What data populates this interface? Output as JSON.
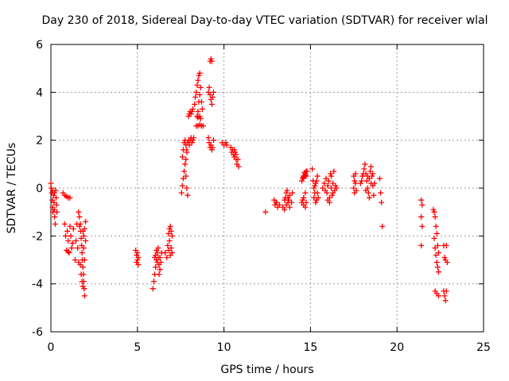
{
  "chart_data": {
    "type": "scatter",
    "title": "Day 230 of 2018, Sidereal Day-to-day VTEC variation (SDTVAR) for receiver wlal",
    "xlabel": "GPS time / hours",
    "ylabel": "SDTVAR / TECUs",
    "xlim": [
      0,
      25
    ],
    "ylim": [
      -6,
      6
    ],
    "xticks": [
      0,
      5,
      10,
      15,
      20,
      25
    ],
    "yticks": [
      -6,
      -4,
      -2,
      0,
      2,
      4,
      6
    ],
    "xtick_labels": [
      "0",
      "5",
      "10",
      "15",
      "20",
      "25"
    ],
    "ytick_labels": [
      "-6",
      "-4",
      "-2",
      "0",
      "2",
      "4",
      "6"
    ],
    "grid": true,
    "marker": "+",
    "color": "#ff0000",
    "series": [
      {
        "name": "SDTVAR",
        "points": [
          [
            0.0,
            0.2
          ],
          [
            0.02,
            0.0
          ],
          [
            0.05,
            -0.2
          ],
          [
            0.08,
            -0.5
          ],
          [
            0.1,
            -0.8
          ],
          [
            0.12,
            -1.0
          ],
          [
            0.15,
            -0.3
          ],
          [
            0.18,
            -0.6
          ],
          [
            0.2,
            -0.9
          ],
          [
            0.22,
            -1.2
          ],
          [
            0.25,
            -1.5
          ],
          [
            0.28,
            -0.1
          ],
          [
            0.3,
            -0.4
          ],
          [
            0.33,
            -0.7
          ],
          [
            0.35,
            -1.0
          ],
          [
            0.1,
            -0.1
          ],
          [
            0.2,
            -0.2
          ],
          [
            0.7,
            -0.2
          ],
          [
            0.8,
            -0.3
          ],
          [
            0.9,
            -0.35
          ],
          [
            1.0,
            -0.4
          ],
          [
            1.1,
            -0.4
          ],
          [
            0.8,
            -1.5
          ],
          [
            0.85,
            -2.0
          ],
          [
            0.9,
            -2.6
          ],
          [
            0.95,
            -1.8
          ],
          [
            1.0,
            -2.2
          ],
          [
            1.05,
            -2.7
          ],
          [
            1.1,
            -1.6
          ],
          [
            1.15,
            -2.0
          ],
          [
            1.2,
            -2.5
          ],
          [
            1.25,
            -2.3
          ],
          [
            1.3,
            -1.7
          ],
          [
            1.0,
            -2.65
          ],
          [
            1.4,
            -3.0
          ],
          [
            1.45,
            -2.2
          ],
          [
            1.5,
            -1.5
          ],
          [
            1.55,
            -2.5
          ],
          [
            1.6,
            -3.1
          ],
          [
            1.65,
            -1.6
          ],
          [
            1.6,
            -1.0
          ],
          [
            1.65,
            -1.2
          ],
          [
            1.7,
            -1.5
          ],
          [
            1.72,
            -1.8
          ],
          [
            1.75,
            -2.1
          ],
          [
            1.78,
            -2.4
          ],
          [
            1.8,
            -2.7
          ],
          [
            1.82,
            -3.0
          ],
          [
            1.85,
            -3.3
          ],
          [
            1.88,
            -3.6
          ],
          [
            1.9,
            -3.9
          ],
          [
            1.92,
            -4.2
          ],
          [
            1.95,
            -4.5
          ],
          [
            1.7,
            -3.2
          ],
          [
            1.75,
            -3.6
          ],
          [
            1.8,
            -3.9
          ],
          [
            1.85,
            -4.1
          ],
          [
            1.9,
            -2.0
          ],
          [
            1.95,
            -1.7
          ],
          [
            2.0,
            -2.2
          ],
          [
            2.0,
            -1.4
          ],
          [
            1.85,
            -1.8
          ],
          [
            1.9,
            -2.5
          ],
          [
            1.95,
            -3.0
          ],
          [
            4.9,
            -2.6
          ],
          [
            4.95,
            -2.8
          ],
          [
            5.0,
            -3.0
          ],
          [
            5.05,
            -3.2
          ],
          [
            4.95,
            -3.1
          ],
          [
            5.0,
            -2.7
          ],
          [
            5.05,
            -2.9
          ],
          [
            5.9,
            -4.2
          ],
          [
            5.95,
            -3.9
          ],
          [
            6.0,
            -3.6
          ],
          [
            6.05,
            -3.3
          ],
          [
            6.1,
            -3.0
          ],
          [
            6.15,
            -2.7
          ],
          [
            6.2,
            -2.9
          ],
          [
            6.25,
            -3.2
          ],
          [
            6.3,
            -3.4
          ],
          [
            6.05,
            -2.8
          ],
          [
            6.1,
            -2.6
          ],
          [
            6.15,
            -3.1
          ],
          [
            6.2,
            -2.5
          ],
          [
            6.3,
            -2.9
          ],
          [
            6.35,
            -3.1
          ],
          [
            6.4,
            -2.7
          ],
          [
            6.25,
            -3.6
          ],
          [
            6.0,
            -2.9
          ],
          [
            6.6,
            -2.7
          ],
          [
            6.7,
            -2.9
          ],
          [
            6.8,
            -2.6
          ],
          [
            6.9,
            -2.8
          ],
          [
            6.95,
            -2.5
          ],
          [
            7.0,
            -2.7
          ],
          [
            6.75,
            -2.4
          ],
          [
            6.85,
            -2.2
          ],
          [
            6.8,
            -1.9
          ],
          [
            6.85,
            -1.7
          ],
          [
            6.9,
            -1.6
          ],
          [
            6.95,
            -1.8
          ],
          [
            7.0,
            -2.0
          ],
          [
            7.55,
            -0.2
          ],
          [
            7.6,
            0.1
          ],
          [
            7.65,
            0.4
          ],
          [
            7.7,
            0.7
          ],
          [
            7.75,
            1.0
          ],
          [
            7.8,
            0.5
          ],
          [
            7.85,
            0.0
          ],
          [
            7.9,
            -0.3
          ],
          [
            7.6,
            1.3
          ],
          [
            7.65,
            1.6
          ],
          [
            7.7,
            1.9
          ],
          [
            7.75,
            2.0
          ],
          [
            7.8,
            1.8
          ],
          [
            7.85,
            1.6
          ],
          [
            7.9,
            1.9
          ],
          [
            7.95,
            2.0
          ],
          [
            8.0,
            1.8
          ],
          [
            8.05,
            2.0
          ],
          [
            8.1,
            2.1
          ],
          [
            8.15,
            1.9
          ],
          [
            8.2,
            2.0
          ],
          [
            8.25,
            2.1
          ],
          [
            7.8,
            1.2
          ],
          [
            7.85,
            1.5
          ],
          [
            7.95,
            3.0
          ],
          [
            8.0,
            3.1
          ],
          [
            8.05,
            3.2
          ],
          [
            8.1,
            3.1
          ],
          [
            8.15,
            3.2
          ],
          [
            8.2,
            3.3
          ],
          [
            8.3,
            3.5
          ],
          [
            8.35,
            3.8
          ],
          [
            8.4,
            4.0
          ],
          [
            8.45,
            4.3
          ],
          [
            8.5,
            4.5
          ],
          [
            8.55,
            4.7
          ],
          [
            8.6,
            4.8
          ],
          [
            8.5,
            3.2
          ],
          [
            8.55,
            3.6
          ],
          [
            8.6,
            3.9
          ],
          [
            8.65,
            4.2
          ],
          [
            8.7,
            3.6
          ],
          [
            8.75,
            3.3
          ],
          [
            8.6,
            3.0
          ],
          [
            8.65,
            2.9
          ],
          [
            8.45,
            3.0
          ],
          [
            8.5,
            2.95
          ],
          [
            8.4,
            2.6
          ],
          [
            8.5,
            2.6
          ],
          [
            8.6,
            2.65
          ],
          [
            8.7,
            2.6
          ],
          [
            8.8,
            2.6
          ],
          [
            9.1,
            4.0
          ],
          [
            9.15,
            4.2
          ],
          [
            9.2,
            3.9
          ],
          [
            9.25,
            3.7
          ],
          [
            9.3,
            3.5
          ],
          [
            9.35,
            3.8
          ],
          [
            9.4,
            4.0
          ],
          [
            9.2,
            5.3
          ],
          [
            9.25,
            5.4
          ],
          [
            9.3,
            5.3
          ],
          [
            9.1,
            2.1
          ],
          [
            9.15,
            1.9
          ],
          [
            9.2,
            1.7
          ],
          [
            9.25,
            1.8
          ],
          [
            9.3,
            1.6
          ],
          [
            9.35,
            1.7
          ],
          [
            9.4,
            2.0
          ],
          [
            9.9,
            1.9
          ],
          [
            10.0,
            1.8
          ],
          [
            10.1,
            1.9
          ],
          [
            10.15,
            1.8
          ],
          [
            10.4,
            1.7
          ],
          [
            10.45,
            1.5
          ],
          [
            10.5,
            1.6
          ],
          [
            10.55,
            1.4
          ],
          [
            10.6,
            1.3
          ],
          [
            10.65,
            1.5
          ],
          [
            10.7,
            1.2
          ],
          [
            10.75,
            1.0
          ],
          [
            10.8,
            1.2
          ],
          [
            10.85,
            0.9
          ],
          [
            10.7,
            1.4
          ],
          [
            10.6,
            1.6
          ],
          [
            12.4,
            -1.0
          ],
          [
            12.9,
            -0.5
          ],
          [
            12.95,
            -0.7
          ],
          [
            13.0,
            -0.6
          ],
          [
            13.1,
            -0.8
          ],
          [
            13.05,
            -0.6
          ],
          [
            13.2,
            -0.7
          ],
          [
            13.4,
            -0.8
          ],
          [
            13.5,
            -0.5
          ],
          [
            13.6,
            -0.2
          ],
          [
            13.7,
            -0.6
          ],
          [
            13.8,
            -0.3
          ],
          [
            13.5,
            -0.9
          ],
          [
            13.6,
            -0.7
          ],
          [
            13.7,
            -0.4
          ],
          [
            13.8,
            -0.8
          ],
          [
            13.9,
            -0.6
          ],
          [
            13.95,
            -0.2
          ],
          [
            13.55,
            -0.4
          ],
          [
            13.65,
            -0.1
          ],
          [
            13.75,
            -0.5
          ],
          [
            14.5,
            -0.6
          ],
          [
            14.6,
            -0.7
          ],
          [
            14.7,
            -0.8
          ],
          [
            14.75,
            -0.6
          ],
          [
            14.6,
            -0.4
          ],
          [
            14.7,
            -0.2
          ],
          [
            14.55,
            -0.5
          ],
          [
            14.5,
            0.3
          ],
          [
            14.55,
            0.4
          ],
          [
            14.6,
            0.45
          ],
          [
            14.65,
            0.5
          ],
          [
            14.7,
            0.6
          ],
          [
            14.75,
            0.7
          ],
          [
            14.8,
            0.7
          ],
          [
            14.6,
            0.5
          ],
          [
            14.7,
            0.55
          ],
          [
            14.65,
            0.65
          ],
          [
            14.75,
            0.5
          ],
          [
            15.1,
            0.8
          ],
          [
            15.15,
            0.3
          ],
          [
            15.2,
            0.0
          ],
          [
            15.25,
            0.1
          ],
          [
            15.3,
            0.2
          ],
          [
            15.35,
            0.3
          ],
          [
            15.4,
            -0.2
          ],
          [
            15.2,
            -0.4
          ],
          [
            15.3,
            -0.6
          ],
          [
            15.35,
            -0.5
          ],
          [
            15.25,
            -0.2
          ],
          [
            15.4,
            0.5
          ],
          [
            15.45,
            -0.4
          ],
          [
            15.7,
            0.0
          ],
          [
            15.8,
            0.2
          ],
          [
            15.9,
            0.4
          ],
          [
            15.95,
            -0.2
          ],
          [
            16.0,
            0.1
          ],
          [
            16.05,
            0.3
          ],
          [
            16.1,
            -0.4
          ],
          [
            16.15,
            0.6
          ],
          [
            16.2,
            0.0
          ],
          [
            16.25,
            -0.3
          ],
          [
            16.3,
            0.2
          ],
          [
            16.35,
            0.7
          ],
          [
            16.4,
            -0.1
          ],
          [
            16.45,
            0.1
          ],
          [
            16.5,
            0.0
          ],
          [
            16.0,
            -0.5
          ],
          [
            16.1,
            -0.6
          ],
          [
            16.2,
            0.5
          ],
          [
            15.85,
            -0.1
          ],
          [
            16.3,
            -0.2
          ],
          [
            17.5,
            0.0
          ],
          [
            17.55,
            0.3
          ],
          [
            17.6,
            0.6
          ],
          [
            17.65,
            -0.1
          ],
          [
            17.5,
            0.5
          ],
          [
            17.6,
            0.2
          ],
          [
            17.55,
            -0.2
          ],
          [
            17.9,
            0.2
          ],
          [
            17.95,
            0.3
          ],
          [
            18.0,
            0.5
          ],
          [
            18.05,
            0.6
          ],
          [
            18.1,
            0.8
          ],
          [
            18.15,
            1.0
          ],
          [
            18.2,
            0.6
          ],
          [
            18.25,
            0.3
          ],
          [
            18.3,
            0.0
          ],
          [
            18.35,
            -0.2
          ],
          [
            18.4,
            0.4
          ],
          [
            18.45,
            0.7
          ],
          [
            18.5,
            0.9
          ],
          [
            18.55,
            0.5
          ],
          [
            18.6,
            0.1
          ],
          [
            18.65,
            -0.3
          ],
          [
            18.7,
            0.2
          ],
          [
            18.2,
            -0.1
          ],
          [
            18.3,
            0.5
          ],
          [
            18.4,
            -0.4
          ],
          [
            18.5,
            0.2
          ],
          [
            18.6,
            0.6
          ],
          [
            19.0,
            0.4
          ],
          [
            19.05,
            -0.2
          ],
          [
            19.1,
            -0.6
          ],
          [
            19.15,
            -1.6
          ],
          [
            21.4,
            -0.5
          ],
          [
            21.45,
            -0.7
          ],
          [
            21.4,
            -1.2
          ],
          [
            21.45,
            -1.6
          ],
          [
            21.4,
            -2.4
          ],
          [
            22.1,
            -0.9
          ],
          [
            22.15,
            -1.0
          ],
          [
            22.2,
            -1.2
          ],
          [
            22.25,
            -1.6
          ],
          [
            22.3,
            -1.9
          ],
          [
            22.15,
            -2.1
          ],
          [
            22.2,
            -2.5
          ],
          [
            22.25,
            -2.8
          ],
          [
            22.3,
            -3.1
          ],
          [
            22.35,
            -3.3
          ],
          [
            22.4,
            -3.5
          ],
          [
            22.35,
            -2.4
          ],
          [
            22.4,
            -2.7
          ],
          [
            22.2,
            -4.3
          ],
          [
            22.3,
            -4.4
          ],
          [
            22.4,
            -4.5
          ],
          [
            22.7,
            -2.4
          ],
          [
            22.75,
            -2.9
          ],
          [
            22.8,
            -3.0
          ],
          [
            22.85,
            -2.4
          ],
          [
            22.7,
            -4.3
          ],
          [
            22.75,
            -4.5
          ],
          [
            22.8,
            -4.7
          ],
          [
            22.85,
            -4.3
          ],
          [
            22.9,
            -3.1
          ]
        ]
      }
    ]
  }
}
